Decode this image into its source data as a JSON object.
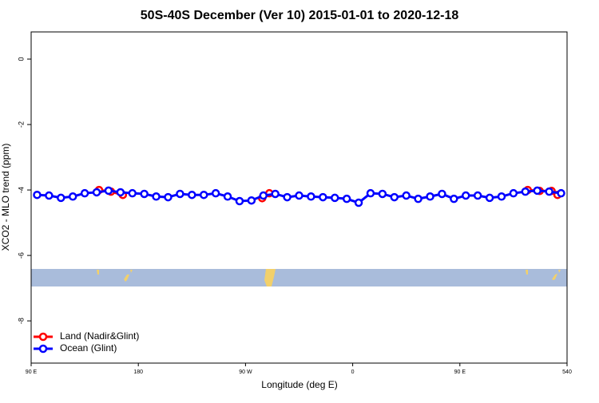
{
  "chart_data": {
    "type": "line",
    "title": "50S-40S December (Ver 10)   2015-01-01 to 2020-12-18",
    "xlabel": "Longitude (deg E)",
    "ylabel": "XCO2 - MLO trend (ppm)",
    "xlim": [
      90,
      540
    ],
    "xticks": [
      {
        "value": 90,
        "label": "90 E"
      },
      180,
      {
        "value": 270,
        "label": "90 W"
      },
      {
        "value": 360,
        "label": "0"
      },
      {
        "value": 450,
        "label": "90 E"
      },
      540
    ],
    "ylim": [
      -9.29,
      0.83
    ],
    "yticks": [
      0,
      -2,
      -4,
      -6,
      -8
    ],
    "legend": "bottom-left",
    "series": [
      {
        "name": "Land (Nadir&Glint)",
        "color": "#ff0000",
        "x": [
          147,
          157,
          167,
          null,
          284,
          290,
          null,
          507,
          517,
          527,
          532
        ],
        "values": [
          -4.0,
          -4.05,
          -4.15,
          null,
          -4.25,
          -4.1,
          null,
          -4.0,
          -4.03,
          -4.03,
          -4.15
        ]
      },
      {
        "name": "Ocean (Glint)",
        "color": "#0000ff",
        "x": [
          95,
          105,
          115,
          125,
          135,
          145,
          155,
          165,
          175,
          185,
          195,
          205,
          215,
          225,
          235,
          245,
          255,
          265,
          275,
          285,
          295,
          305,
          315,
          325,
          335,
          345,
          355,
          365,
          375,
          385,
          395,
          405,
          415,
          425,
          435,
          445,
          455,
          465,
          475,
          485,
          495,
          505,
          515,
          525,
          535
        ],
        "values": [
          -4.15,
          -4.17,
          -4.24,
          -4.2,
          -4.1,
          -4.07,
          -4.02,
          -4.07,
          -4.1,
          -4.12,
          -4.2,
          -4.22,
          -4.12,
          -4.15,
          -4.15,
          -4.1,
          -4.2,
          -4.34,
          -4.32,
          -4.17,
          -4.12,
          -4.22,
          -4.17,
          -4.2,
          -4.22,
          -4.24,
          -4.27,
          -4.39,
          -4.1,
          -4.12,
          -4.22,
          -4.17,
          -4.27,
          -4.2,
          -4.12,
          -4.27,
          -4.17,
          -4.17,
          -4.24,
          -4.2,
          -4.1,
          -4.05,
          -4.02,
          -4.05,
          -4.1
        ]
      }
    ]
  }
}
